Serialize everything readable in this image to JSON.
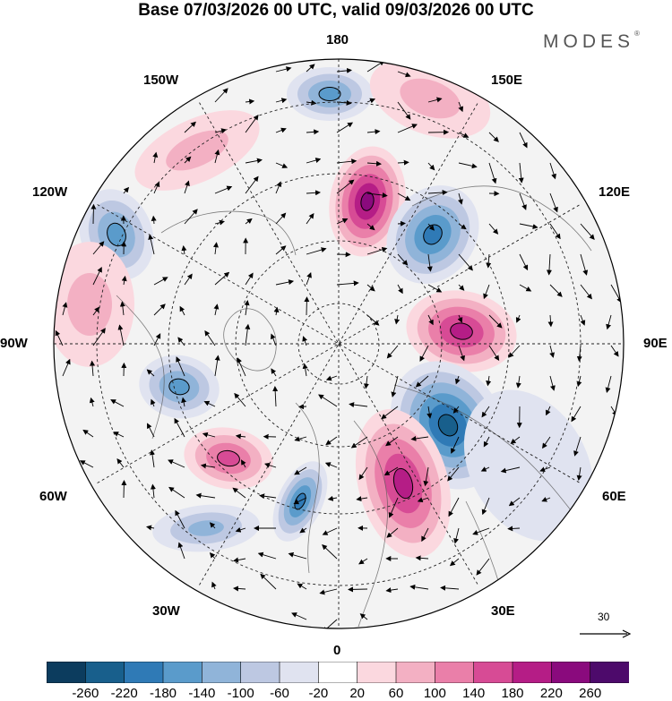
{
  "title": "Base 07/03/2026 00 UTC, valid 09/03/2026 00 UTC",
  "brand": {
    "name": "MODES",
    "mark": "®"
  },
  "longitude_labels": {
    "top": "180",
    "bottom": "0",
    "left": "90W",
    "right": "90E",
    "upper_left_1": "150W",
    "upper_left_2": "120W",
    "upper_right_1": "150E",
    "upper_right_2": "120E",
    "lower_left_1": "60W",
    "lower_left_2": "30W",
    "lower_right_1": "60E",
    "lower_right_2": "30E"
  },
  "reference_vector": {
    "value": "30",
    "icon": "arrow-right-icon"
  },
  "colorbar": {
    "tick_labels": [
      "-260",
      "-220",
      "-180",
      "-140",
      "-100",
      "-60",
      "-20",
      "20",
      "60",
      "100",
      "140",
      "180",
      "220",
      "260"
    ],
    "colors": [
      "#0c3c5e",
      "#185f8c",
      "#2f7ab6",
      "#5a9bcb",
      "#90b4d9",
      "#bdc8e2",
      "#e0e3f0",
      "#ffffff",
      "#fbd8df",
      "#f3b0c3",
      "#ea7fa9",
      "#d74b95",
      "#b51d86",
      "#8a0a7d",
      "#4d0a6b"
    ]
  },
  "anomalies": [
    {
      "name": "anom-ne-pacific-low",
      "v": -160
    },
    {
      "name": "anom-aleutian-high",
      "v": 90
    },
    {
      "name": "anom-siberia-high",
      "v": 230
    },
    {
      "name": "anom-east-siberia-low",
      "v": -200
    },
    {
      "name": "anom-canada-low",
      "v": -170
    },
    {
      "name": "anom-central-asia-high",
      "v": 210
    },
    {
      "name": "anom-west-siberia-low",
      "v": -250
    },
    {
      "name": "anom-europe-high",
      "v": 200
    },
    {
      "name": "anom-atlantic-low",
      "v": -190
    },
    {
      "name": "anom-greenland-low",
      "v": -150
    },
    {
      "name": "anom-north-atlantic-high",
      "v": 150
    },
    {
      "name": "anom-south-atlantic-low",
      "v": -110
    },
    {
      "name": "anom-pacific-high",
      "v": 80
    },
    {
      "name": "anom-asia-low",
      "v": -60
    },
    {
      "name": "anom-america-high",
      "v": 60
    }
  ]
}
